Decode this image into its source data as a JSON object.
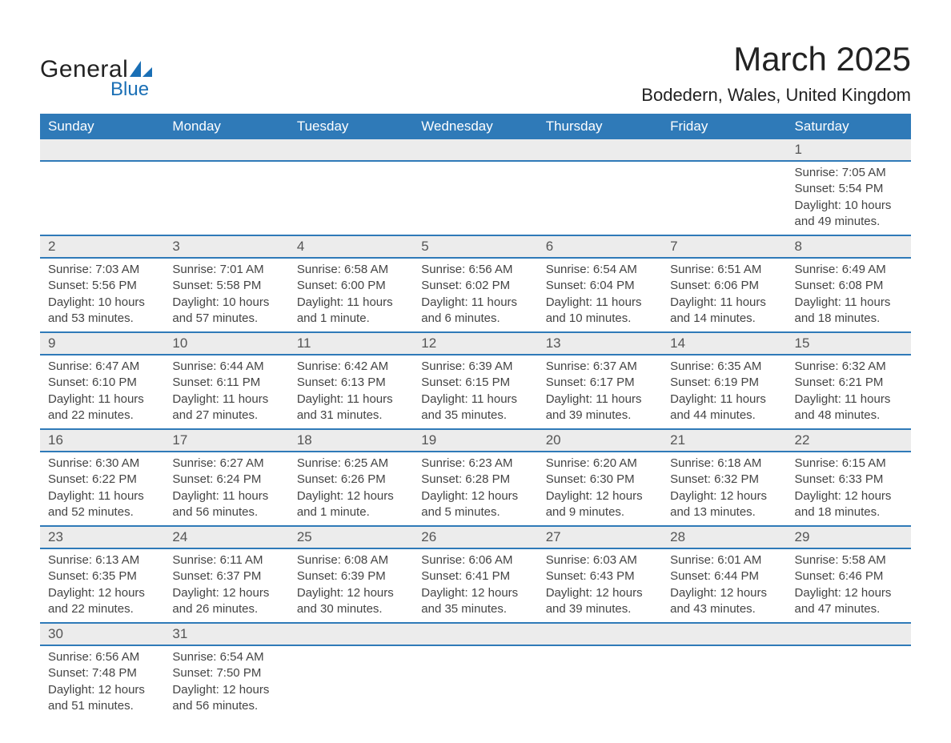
{
  "logo": {
    "word1": "General",
    "word2": "Blue",
    "sail_color": "#1a6fb5",
    "text_color": "#222"
  },
  "title": "March 2025",
  "location": "Bodedern, Wales, United Kingdom",
  "colors": {
    "header_bg": "#2f7ab8",
    "header_text": "#ffffff",
    "daynum_bg": "#ececec",
    "daynum_text": "#555555",
    "row_border": "#2f7ab8",
    "body_text": "#444444",
    "page_bg": "#ffffff"
  },
  "typography": {
    "title_fontsize": 42,
    "location_fontsize": 22,
    "header_fontsize": 17,
    "daynum_fontsize": 17,
    "detail_fontsize": 15,
    "font_family": "Arial"
  },
  "weekdays": [
    "Sunday",
    "Monday",
    "Tuesday",
    "Wednesday",
    "Thursday",
    "Friday",
    "Saturday"
  ],
  "weeks": [
    [
      null,
      null,
      null,
      null,
      null,
      null,
      {
        "day": "1",
        "sunrise": "Sunrise: 7:05 AM",
        "sunset": "Sunset: 5:54 PM",
        "daylight1": "Daylight: 10 hours",
        "daylight2": "and 49 minutes."
      }
    ],
    [
      {
        "day": "2",
        "sunrise": "Sunrise: 7:03 AM",
        "sunset": "Sunset: 5:56 PM",
        "daylight1": "Daylight: 10 hours",
        "daylight2": "and 53 minutes."
      },
      {
        "day": "3",
        "sunrise": "Sunrise: 7:01 AM",
        "sunset": "Sunset: 5:58 PM",
        "daylight1": "Daylight: 10 hours",
        "daylight2": "and 57 minutes."
      },
      {
        "day": "4",
        "sunrise": "Sunrise: 6:58 AM",
        "sunset": "Sunset: 6:00 PM",
        "daylight1": "Daylight: 11 hours",
        "daylight2": "and 1 minute."
      },
      {
        "day": "5",
        "sunrise": "Sunrise: 6:56 AM",
        "sunset": "Sunset: 6:02 PM",
        "daylight1": "Daylight: 11 hours",
        "daylight2": "and 6 minutes."
      },
      {
        "day": "6",
        "sunrise": "Sunrise: 6:54 AM",
        "sunset": "Sunset: 6:04 PM",
        "daylight1": "Daylight: 11 hours",
        "daylight2": "and 10 minutes."
      },
      {
        "day": "7",
        "sunrise": "Sunrise: 6:51 AM",
        "sunset": "Sunset: 6:06 PM",
        "daylight1": "Daylight: 11 hours",
        "daylight2": "and 14 minutes."
      },
      {
        "day": "8",
        "sunrise": "Sunrise: 6:49 AM",
        "sunset": "Sunset: 6:08 PM",
        "daylight1": "Daylight: 11 hours",
        "daylight2": "and 18 minutes."
      }
    ],
    [
      {
        "day": "9",
        "sunrise": "Sunrise: 6:47 AM",
        "sunset": "Sunset: 6:10 PM",
        "daylight1": "Daylight: 11 hours",
        "daylight2": "and 22 minutes."
      },
      {
        "day": "10",
        "sunrise": "Sunrise: 6:44 AM",
        "sunset": "Sunset: 6:11 PM",
        "daylight1": "Daylight: 11 hours",
        "daylight2": "and 27 minutes."
      },
      {
        "day": "11",
        "sunrise": "Sunrise: 6:42 AM",
        "sunset": "Sunset: 6:13 PM",
        "daylight1": "Daylight: 11 hours",
        "daylight2": "and 31 minutes."
      },
      {
        "day": "12",
        "sunrise": "Sunrise: 6:39 AM",
        "sunset": "Sunset: 6:15 PM",
        "daylight1": "Daylight: 11 hours",
        "daylight2": "and 35 minutes."
      },
      {
        "day": "13",
        "sunrise": "Sunrise: 6:37 AM",
        "sunset": "Sunset: 6:17 PM",
        "daylight1": "Daylight: 11 hours",
        "daylight2": "and 39 minutes."
      },
      {
        "day": "14",
        "sunrise": "Sunrise: 6:35 AM",
        "sunset": "Sunset: 6:19 PM",
        "daylight1": "Daylight: 11 hours",
        "daylight2": "and 44 minutes."
      },
      {
        "day": "15",
        "sunrise": "Sunrise: 6:32 AM",
        "sunset": "Sunset: 6:21 PM",
        "daylight1": "Daylight: 11 hours",
        "daylight2": "and 48 minutes."
      }
    ],
    [
      {
        "day": "16",
        "sunrise": "Sunrise: 6:30 AM",
        "sunset": "Sunset: 6:22 PM",
        "daylight1": "Daylight: 11 hours",
        "daylight2": "and 52 minutes."
      },
      {
        "day": "17",
        "sunrise": "Sunrise: 6:27 AM",
        "sunset": "Sunset: 6:24 PM",
        "daylight1": "Daylight: 11 hours",
        "daylight2": "and 56 minutes."
      },
      {
        "day": "18",
        "sunrise": "Sunrise: 6:25 AM",
        "sunset": "Sunset: 6:26 PM",
        "daylight1": "Daylight: 12 hours",
        "daylight2": "and 1 minute."
      },
      {
        "day": "19",
        "sunrise": "Sunrise: 6:23 AM",
        "sunset": "Sunset: 6:28 PM",
        "daylight1": "Daylight: 12 hours",
        "daylight2": "and 5 minutes."
      },
      {
        "day": "20",
        "sunrise": "Sunrise: 6:20 AM",
        "sunset": "Sunset: 6:30 PM",
        "daylight1": "Daylight: 12 hours",
        "daylight2": "and 9 minutes."
      },
      {
        "day": "21",
        "sunrise": "Sunrise: 6:18 AM",
        "sunset": "Sunset: 6:32 PM",
        "daylight1": "Daylight: 12 hours",
        "daylight2": "and 13 minutes."
      },
      {
        "day": "22",
        "sunrise": "Sunrise: 6:15 AM",
        "sunset": "Sunset: 6:33 PM",
        "daylight1": "Daylight: 12 hours",
        "daylight2": "and 18 minutes."
      }
    ],
    [
      {
        "day": "23",
        "sunrise": "Sunrise: 6:13 AM",
        "sunset": "Sunset: 6:35 PM",
        "daylight1": "Daylight: 12 hours",
        "daylight2": "and 22 minutes."
      },
      {
        "day": "24",
        "sunrise": "Sunrise: 6:11 AM",
        "sunset": "Sunset: 6:37 PM",
        "daylight1": "Daylight: 12 hours",
        "daylight2": "and 26 minutes."
      },
      {
        "day": "25",
        "sunrise": "Sunrise: 6:08 AM",
        "sunset": "Sunset: 6:39 PM",
        "daylight1": "Daylight: 12 hours",
        "daylight2": "and 30 minutes."
      },
      {
        "day": "26",
        "sunrise": "Sunrise: 6:06 AM",
        "sunset": "Sunset: 6:41 PM",
        "daylight1": "Daylight: 12 hours",
        "daylight2": "and 35 minutes."
      },
      {
        "day": "27",
        "sunrise": "Sunrise: 6:03 AM",
        "sunset": "Sunset: 6:43 PM",
        "daylight1": "Daylight: 12 hours",
        "daylight2": "and 39 minutes."
      },
      {
        "day": "28",
        "sunrise": "Sunrise: 6:01 AM",
        "sunset": "Sunset: 6:44 PM",
        "daylight1": "Daylight: 12 hours",
        "daylight2": "and 43 minutes."
      },
      {
        "day": "29",
        "sunrise": "Sunrise: 5:58 AM",
        "sunset": "Sunset: 6:46 PM",
        "daylight1": "Daylight: 12 hours",
        "daylight2": "and 47 minutes."
      }
    ],
    [
      {
        "day": "30",
        "sunrise": "Sunrise: 6:56 AM",
        "sunset": "Sunset: 7:48 PM",
        "daylight1": "Daylight: 12 hours",
        "daylight2": "and 51 minutes."
      },
      {
        "day": "31",
        "sunrise": "Sunrise: 6:54 AM",
        "sunset": "Sunset: 7:50 PM",
        "daylight1": "Daylight: 12 hours",
        "daylight2": "and 56 minutes."
      },
      null,
      null,
      null,
      null,
      null
    ]
  ]
}
